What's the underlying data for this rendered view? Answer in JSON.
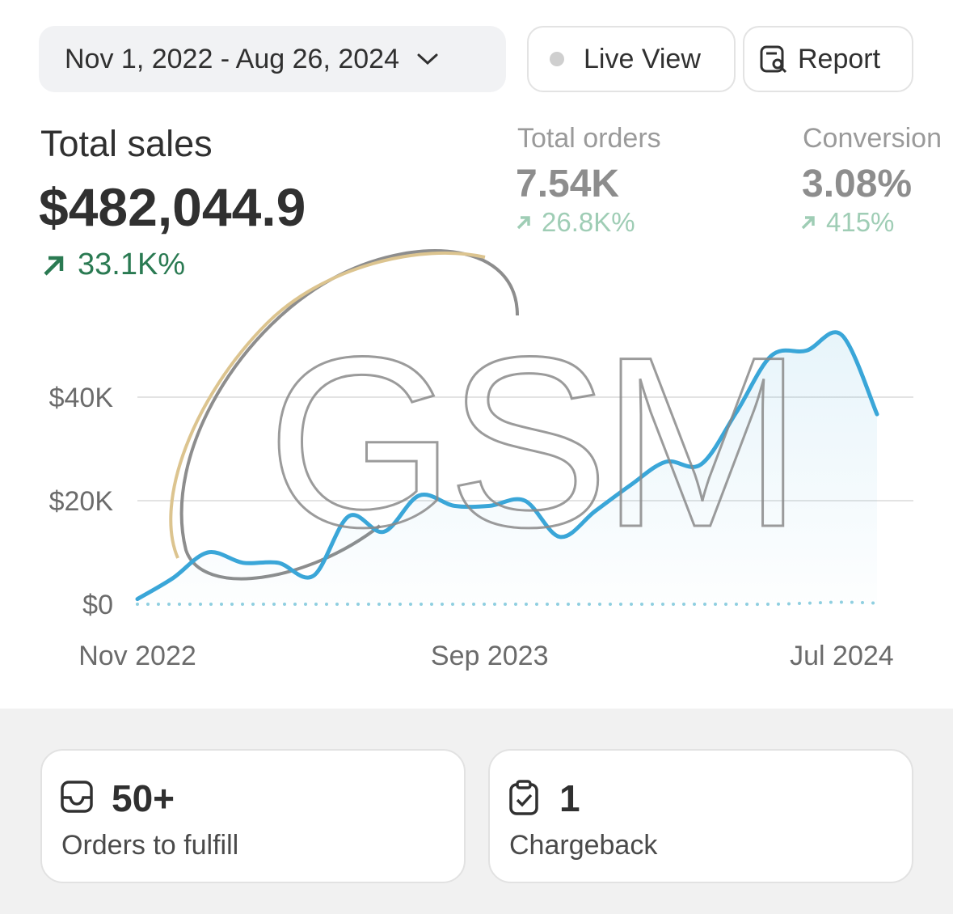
{
  "toolbar": {
    "date_range": "Nov 1, 2022 - Aug 26, 2024",
    "live_view": "Live View",
    "report": "Report"
  },
  "metrics": [
    {
      "label": "Total sales",
      "value": "$482,044.9",
      "change": "33.1K%"
    },
    {
      "label": "Total orders",
      "value": "7.54K",
      "change": "26.8K%"
    },
    {
      "label": "Conversion",
      "value": "3.08%",
      "change": "415%"
    }
  ],
  "watermark": "GSM",
  "chart_data": {
    "type": "line",
    "categories": [
      "Nov 2022",
      null,
      null,
      null,
      null,
      null,
      null,
      null,
      null,
      null,
      "Sep 2023",
      null,
      null,
      null,
      null,
      null,
      null,
      null,
      null,
      null,
      "Jul 2024",
      null
    ],
    "series": [
      {
        "color": "#3aa6d8",
        "values": [
          1000,
          5000,
          10000,
          8000,
          8000,
          5500,
          17000,
          14000,
          21000,
          19000,
          19000,
          20000,
          13000,
          18000,
          23000,
          27500,
          27000,
          37000,
          48000,
          49000,
          52000,
          36700
        ]
      },
      {
        "color": "#8fcfe0",
        "values": [
          0,
          0,
          0,
          0,
          0,
          0,
          0,
          0,
          0,
          0,
          0,
          0,
          0,
          0,
          0,
          0,
          0,
          0,
          0,
          200,
          400,
          200
        ]
      }
    ],
    "ylim": [
      0,
      55000
    ],
    "yticks": [
      {
        "value": 0,
        "label": "$0"
      },
      {
        "value": 20000,
        "label": "$20K"
      },
      {
        "value": 40000,
        "label": "$40K"
      }
    ],
    "grid": true
  },
  "cards": [
    {
      "value": "50+",
      "label": "Orders to fulfill"
    },
    {
      "value": "1",
      "label": "Chargeback"
    }
  ]
}
